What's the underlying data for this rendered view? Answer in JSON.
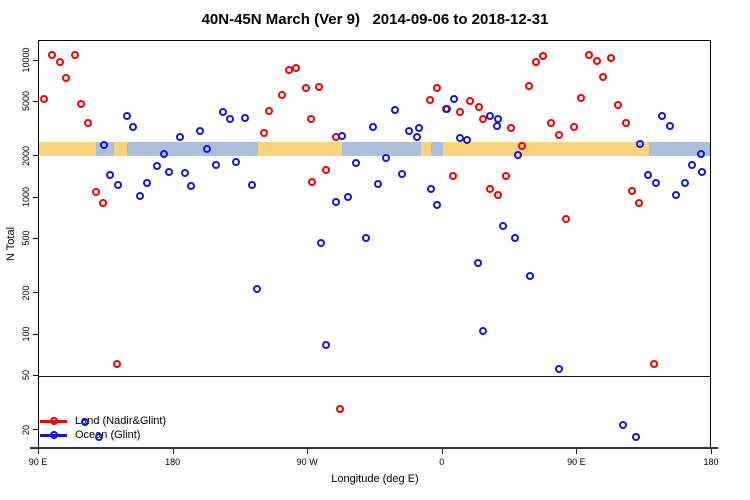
{
  "chart_data": {
    "type": "scatter",
    "title": "40N-45N March (Ver 9)   2014-09-06 to 2018-12-31",
    "xlabel": "Longitude (deg E)",
    "ylabel": "N Total",
    "y_scale": "log",
    "ylim": [
      15,
      14000
    ],
    "y_ticks": [
      10000,
      5000,
      2000,
      1000,
      500,
      200,
      100,
      50,
      20
    ],
    "x_axis_note": "x measured in degrees eastward from 90E at left edge; axis spans 450 deg wrapping through 180, 90W, 0, 90E to 180",
    "x_ticks": [
      {
        "deg": 0,
        "label": "90 E"
      },
      {
        "deg": 90,
        "label": "180"
      },
      {
        "deg": 180,
        "label": "90 W"
      },
      {
        "deg": 270,
        "label": "0"
      },
      {
        "deg": 360,
        "label": "90 E"
      },
      {
        "deg": 450,
        "label": "180"
      }
    ],
    "reference_line": {
      "n": 50,
      "color": "#111111"
    },
    "land_ocean_band": {
      "n_range": [
        2030,
        2560
      ],
      "land_color": "#fbd37f",
      "ocean_color": "#a9bfda",
      "segments": [
        {
          "from_deg": 0,
          "to_deg": 38.1,
          "surface": "land"
        },
        {
          "from_deg": 38.1,
          "to_deg": 50.1,
          "surface": "ocean"
        },
        {
          "from_deg": 50.1,
          "to_deg": 58.8,
          "surface": "land"
        },
        {
          "from_deg": 58.8,
          "to_deg": 146.4,
          "surface": "ocean"
        },
        {
          "from_deg": 146.4,
          "to_deg": 202.6,
          "surface": "land"
        },
        {
          "from_deg": 202.6,
          "to_deg": 255.4,
          "surface": "ocean"
        },
        {
          "from_deg": 255.4,
          "to_deg": 262.1,
          "surface": "land"
        },
        {
          "from_deg": 262.1,
          "to_deg": 270.1,
          "surface": "ocean"
        },
        {
          "from_deg": 270.1,
          "to_deg": 407.9,
          "surface": "land"
        },
        {
          "from_deg": 407.9,
          "to_deg": 450,
          "surface": "ocean"
        }
      ]
    },
    "legend_position": "bottom-left",
    "series": [
      {
        "name": "Land (Nadir&Glint)",
        "color": "#f40000",
        "marker": "open-circle",
        "points": [
          [
            8.7,
            11000
          ],
          [
            14,
            9800
          ],
          [
            24,
            11000
          ],
          [
            18,
            7500
          ],
          [
            3.3,
            5300
          ],
          [
            28,
            4850
          ],
          [
            32.8,
            3500
          ],
          [
            38,
            1100
          ],
          [
            42.8,
            920
          ],
          [
            150.4,
            3000
          ],
          [
            153.8,
            4300
          ],
          [
            162.5,
            5600
          ],
          [
            167.2,
            8600
          ],
          [
            171.9,
            8900
          ],
          [
            178.5,
            6400
          ],
          [
            187.2,
            6500
          ],
          [
            181.9,
            3800
          ],
          [
            198.6,
            2800
          ],
          [
            191.9,
            1600
          ],
          [
            182.6,
            1300
          ],
          [
            201.3,
            29
          ],
          [
            261.4,
            5200
          ],
          [
            266.1,
            6400
          ],
          [
            272.1,
            4500
          ],
          [
            281.5,
            4250
          ],
          [
            288.2,
            5100
          ],
          [
            294.2,
            4600
          ],
          [
            296.9,
            3800
          ],
          [
            276.8,
            1450
          ],
          [
            301.6,
            1160
          ],
          [
            306.9,
            1050
          ],
          [
            312.3,
            1450
          ],
          [
            315.6,
            3250
          ],
          [
            323,
            2400
          ],
          [
            327.7,
            6600
          ],
          [
            332.3,
            9800
          ],
          [
            337,
            10900
          ],
          [
            342.4,
            3500
          ],
          [
            347.7,
            2900
          ],
          [
            352.4,
            700
          ],
          [
            357.7,
            3300
          ],
          [
            362.4,
            5400
          ],
          [
            367.8,
            11000
          ],
          [
            373.1,
            10000
          ],
          [
            377.1,
            7600
          ],
          [
            382.5,
            10500
          ],
          [
            387.2,
            4800
          ],
          [
            392.5,
            3500
          ],
          [
            396.5,
            1120
          ],
          [
            401.2,
            920
          ],
          [
            411.2,
            61
          ],
          [
            52.2,
            61
          ]
        ]
      },
      {
        "name": "Ocean (Glint)",
        "color": "#1414e8",
        "marker": "open-circle",
        "points": [
          [
            30.8,
            23
          ],
          [
            40.1,
            18
          ],
          [
            43.5,
            2450
          ],
          [
            47.5,
            1470
          ],
          [
            52.8,
            1250
          ],
          [
            58.8,
            4000
          ],
          [
            62.9,
            3300
          ],
          [
            67.5,
            1040
          ],
          [
            72.2,
            1290
          ],
          [
            78.9,
            1700
          ],
          [
            83.6,
            2100
          ],
          [
            86.9,
            1550
          ],
          [
            94.3,
            2800
          ],
          [
            97.6,
            1520
          ],
          [
            101.6,
            1220
          ],
          [
            107.7,
            3100
          ],
          [
            112.3,
            2280
          ],
          [
            118.4,
            1750
          ],
          [
            123,
            4250
          ],
          [
            127.7,
            3800
          ],
          [
            131.7,
            1830
          ],
          [
            137.8,
            3850
          ],
          [
            142.4,
            1250
          ],
          [
            145.8,
            215
          ],
          [
            188.6,
            470
          ],
          [
            191.9,
            85
          ],
          [
            198.6,
            940
          ],
          [
            202.6,
            2840
          ],
          [
            206.6,
            1020
          ],
          [
            212,
            1800
          ],
          [
            218.7,
            510
          ],
          [
            223.4,
            3300
          ],
          [
            226.7,
            1270
          ],
          [
            232,
            1960
          ],
          [
            238.1,
            4400
          ],
          [
            242.7,
            1500
          ],
          [
            247.4,
            3100
          ],
          [
            252.8,
            2800
          ],
          [
            254.1,
            3250
          ],
          [
            262.1,
            1160
          ],
          [
            266.1,
            890
          ],
          [
            272.8,
            4500
          ],
          [
            277.5,
            5300
          ],
          [
            281.5,
            2750
          ],
          [
            286.2,
            2650
          ],
          [
            293.6,
            335
          ],
          [
            296.9,
            107
          ],
          [
            301.6,
            4000
          ],
          [
            306.3,
            3350
          ],
          [
            306.9,
            3800
          ],
          [
            310.3,
            625
          ],
          [
            318.3,
            510
          ],
          [
            320.3,
            2060
          ],
          [
            328.3,
            270
          ],
          [
            347.7,
            56
          ],
          [
            390.5,
            22
          ],
          [
            399.2,
            18
          ],
          [
            401.9,
            2480
          ],
          [
            407.2,
            1470
          ],
          [
            412.6,
            1290
          ],
          [
            416.6,
            4000
          ],
          [
            422,
            3350
          ],
          [
            426,
            1050
          ],
          [
            432,
            1290
          ],
          [
            436.7,
            1740
          ],
          [
            442.7,
            2100
          ],
          [
            443.4,
            1550
          ]
        ]
      }
    ]
  },
  "legend": {
    "items": [
      {
        "label": "Land (Nadir&Glint)",
        "color": "#f40000"
      },
      {
        "label": "Ocean (Glint)",
        "color": "#1414e8"
      }
    ]
  }
}
